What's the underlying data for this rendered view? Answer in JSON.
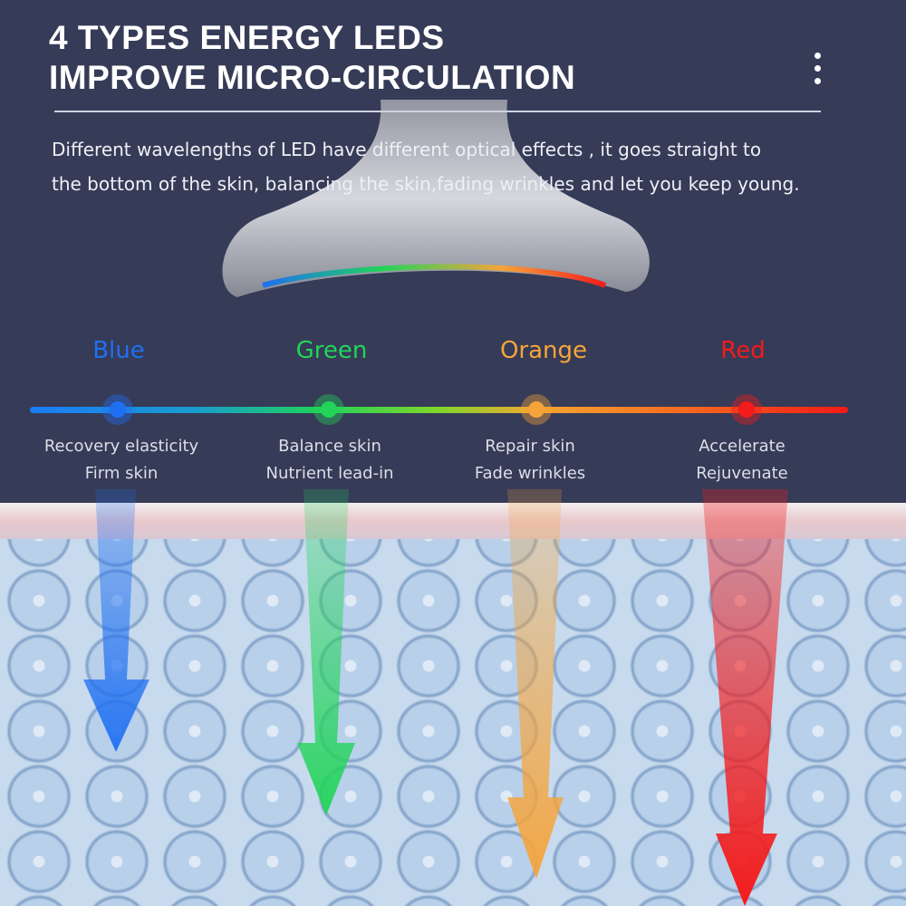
{
  "header": {
    "title_line1": "4 TYPES ENERGY LEDS",
    "title_line2": "IMPROVE MICRO-CIRCULATION",
    "menu_icon": "vertical-ellipsis-icon"
  },
  "description": {
    "line1": "Different wavelengths of LED have different optical effects , it  goes straight to",
    "line2": "the bottom of the skin, balancing the skin,fading wrinkles and let you keep young."
  },
  "leds": [
    {
      "name": "Blue",
      "color": "#1f6ff2",
      "effect1": "Recovery elasticity",
      "effect2": "Firm skin"
    },
    {
      "name": "Green",
      "color": "#22d45a",
      "effect1": "Balance skin",
      "effect2": "Nutrient lead-in"
    },
    {
      "name": "Orange",
      "color": "#f6a43a",
      "effect1": "Repair skin",
      "effect2": "Fade wrinkles"
    },
    {
      "name": "Red",
      "color": "#f31b1b",
      "effect1": "Accelerate",
      "effect2": "Rejuvenate"
    }
  ]
}
